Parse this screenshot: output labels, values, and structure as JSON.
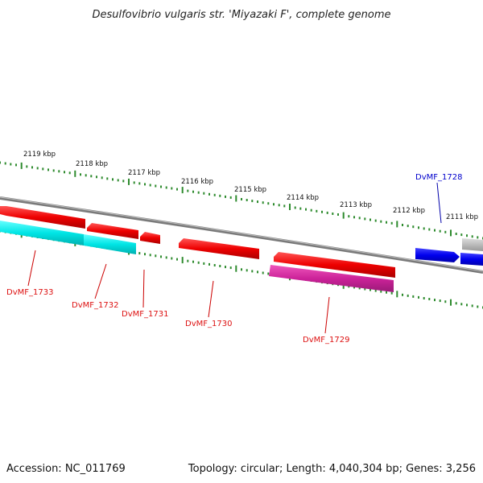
{
  "title": "Desulfovibrio vulgaris str. 'Miyazaki F', complete genome",
  "footer": {
    "accession": "Accession: NC_011769",
    "summary": "Topology: circular; Length: 4,040,304 bp; Genes: 3,256"
  },
  "ruler": {
    "labels": [
      "2119 kbp",
      "2118 kbp",
      "2117 kbp",
      "2116 kbp",
      "2115 kbp",
      "2114 kbp",
      "2113 kbp",
      "2112 kbp",
      "2111 kbp"
    ],
    "color": "#2e8b2e"
  },
  "genes": [
    {
      "label": "DvMF_1733",
      "color": "#dd1111"
    },
    {
      "label": "DvMF_1732",
      "color": "#dd1111"
    },
    {
      "label": "DvMF_1731",
      "color": "#dd1111"
    },
    {
      "label": "DvMF_1730",
      "color": "#dd1111"
    },
    {
      "label": "DvMF_1729",
      "color": "#dd1111"
    },
    {
      "label": "DvMF_1728",
      "color": "#0000cc"
    }
  ],
  "colors": {
    "forward_cds": "#ee0000",
    "reverse_cds": "#0000ee",
    "cyan_feature": "#00dddd",
    "magenta_feature": "#cc2299",
    "grey_feature": "#bbbbbb",
    "backbone": "#888888",
    "ticks": "#2e8b2e"
  }
}
